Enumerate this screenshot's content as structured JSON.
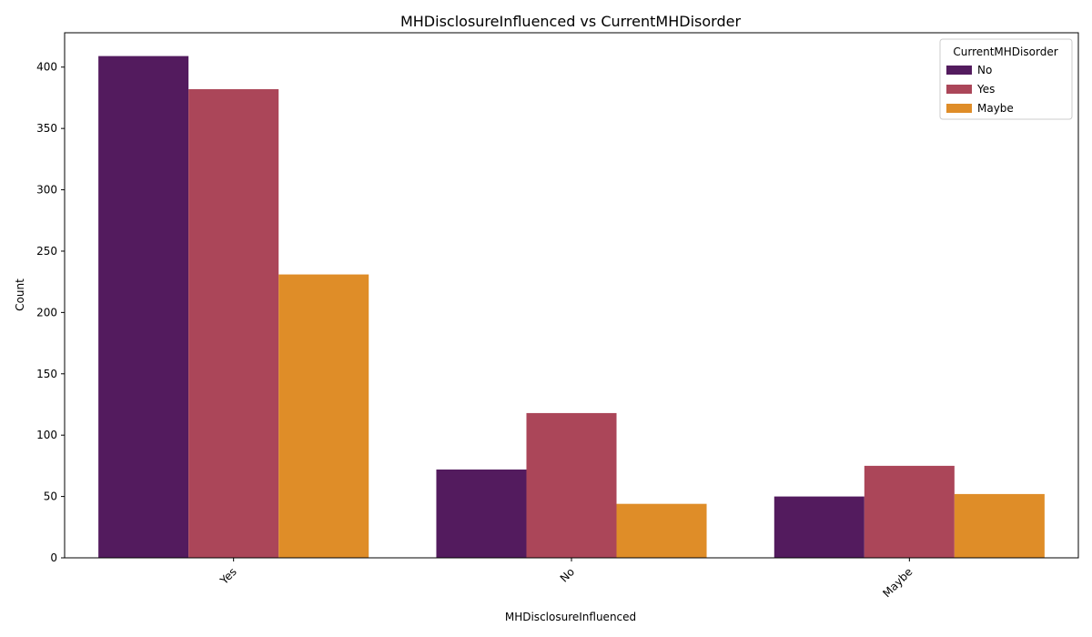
{
  "chart_data": {
    "type": "bar",
    "title": "MHDisclosureInfluenced vs CurrentMHDisorder",
    "xlabel": "MHDisclosureInfluenced",
    "ylabel": "Count",
    "categories": [
      "Yes",
      "No",
      "Maybe"
    ],
    "series": [
      {
        "name": "No",
        "values": [
          409,
          72,
          50
        ],
        "color": "#531b5e"
      },
      {
        "name": "Yes",
        "values": [
          382,
          118,
          75
        ],
        "color": "#ab4659"
      },
      {
        "name": "Maybe",
        "values": [
          231,
          44,
          52
        ],
        "color": "#df8d28"
      }
    ],
    "ylim": [
      0,
      428
    ],
    "yticks": [
      0,
      50,
      100,
      150,
      200,
      250,
      300,
      350,
      400
    ],
    "legend": {
      "title": "CurrentMHDisorder",
      "position": "top-right"
    },
    "grid": false
  }
}
